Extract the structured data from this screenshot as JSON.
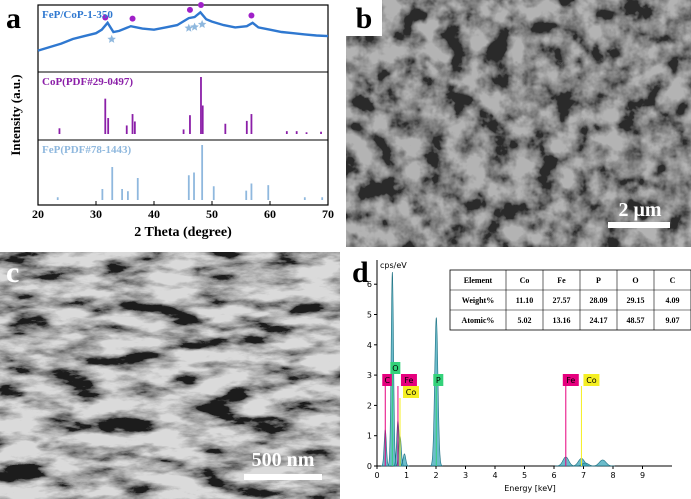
{
  "panel_a": {
    "label": "a",
    "xlabel": "2 Theta (degree)",
    "ylabel": "Intensity (a.u.)",
    "xlim": [
      20,
      70
    ],
    "xticks": [
      20,
      30,
      40,
      50,
      60,
      70
    ],
    "measured": {
      "name": "FeP/CoP-1-350",
      "color": "#2f78d0",
      "x": [
        20,
        22,
        24,
        26,
        28,
        30,
        31,
        32,
        33,
        34,
        36,
        38,
        40,
        42,
        44,
        45,
        46,
        47,
        48,
        49,
        50,
        52,
        54,
        56,
        57,
        58,
        60,
        62,
        64,
        66,
        68,
        70
      ],
      "values": [
        0.3,
        0.36,
        0.42,
        0.5,
        0.55,
        0.6,
        0.66,
        0.78,
        0.62,
        0.64,
        0.72,
        0.68,
        0.66,
        0.7,
        0.74,
        0.8,
        0.86,
        0.88,
        0.96,
        0.84,
        0.8,
        0.74,
        0.7,
        0.72,
        0.78,
        0.7,
        0.66,
        0.62,
        0.6,
        0.58,
        0.56,
        0.55
      ],
      "circles": [
        31.6,
        36.3,
        46.2,
        48.1,
        56.8
      ],
      "circle_color": "#a020c8",
      "stars": [
        32.7,
        46.0,
        47.0,
        48.3
      ],
      "star_color": "#8fb8de"
    },
    "references": [
      {
        "name": "CoP(PDF#29-0497)",
        "color": "#8b1fa8",
        "x": [
          23.7,
          31.6,
          32.1,
          35.3,
          36.3,
          36.7,
          45.1,
          46.2,
          48.1,
          48.4,
          52.3,
          56.0,
          56.8,
          62.9,
          64.6,
          66.3,
          68.8
        ],
        "values": [
          0.1,
          0.62,
          0.28,
          0.15,
          0.35,
          0.22,
          0.08,
          0.33,
          1.0,
          0.5,
          0.18,
          0.23,
          0.35,
          0.05,
          0.05,
          0.03,
          0.04
        ]
      },
      {
        "name": "FeP(PDF#78-1443)",
        "color": "#8fb8de",
        "x": [
          23.4,
          31.1,
          32.8,
          34.5,
          35.5,
          37.2,
          46.0,
          46.9,
          48.3,
          50.3,
          55.9,
          56.8,
          59.7,
          66.0,
          69.0
        ],
        "values": [
          0.05,
          0.2,
          0.6,
          0.2,
          0.16,
          0.4,
          0.45,
          0.5,
          1.0,
          0.25,
          0.17,
          0.3,
          0.27,
          0.05,
          0.05
        ]
      }
    ]
  },
  "panel_b": {
    "label": "b",
    "scale_bar": "2 μm"
  },
  "panel_c": {
    "label": "c",
    "scale_bar": "500 nm"
  },
  "panel_d": {
    "label": "d",
    "ylabel": "cps/eV",
    "xlabel": "Energy [keV]",
    "xlim": [
      0,
      10
    ],
    "xticks": [
      0,
      1,
      2,
      3,
      4,
      5,
      6,
      7,
      8,
      9
    ],
    "ylim": [
      0,
      6.7
    ],
    "yticks": [
      0,
      1,
      2,
      3,
      4,
      5,
      6
    ],
    "spectrum_color": "#3aa6b9",
    "peaks": {
      "energy": [
        0.28,
        0.52,
        0.71,
        0.78,
        0.93,
        2.01,
        6.4,
        6.93,
        7.06,
        7.65
      ],
      "values": [
        1.2,
        6.4,
        1.5,
        1.0,
        0.4,
        4.9,
        0.3,
        0.25,
        0.1,
        0.2
      ]
    },
    "elements": [
      {
        "label": "C",
        "energy": 0.28,
        "color": "#e6007e"
      },
      {
        "label": "O",
        "energy": 0.52,
        "color": "#34d27a"
      },
      {
        "label": "Fe",
        "energy": 0.71,
        "color": "#e6007e"
      },
      {
        "label": "Co",
        "energy": 0.78,
        "color": "#f5ef22"
      },
      {
        "label": "P",
        "energy": 2.01,
        "color": "#34d27a"
      },
      {
        "label": "Fe",
        "energy": 6.4,
        "color": "#e6007e"
      },
      {
        "label": "Co",
        "energy": 6.93,
        "color": "#f5ef22"
      }
    ],
    "table": {
      "header": [
        "Element",
        "Co",
        "Fe",
        "P",
        "O",
        "C"
      ],
      "rows": [
        [
          "Weight%",
          "11.10",
          "27.57",
          "28.09",
          "29.15",
          "4.09"
        ],
        [
          "Atomic%",
          "5.02",
          "13.16",
          "24.17",
          "48.57",
          "9.07"
        ]
      ]
    }
  }
}
